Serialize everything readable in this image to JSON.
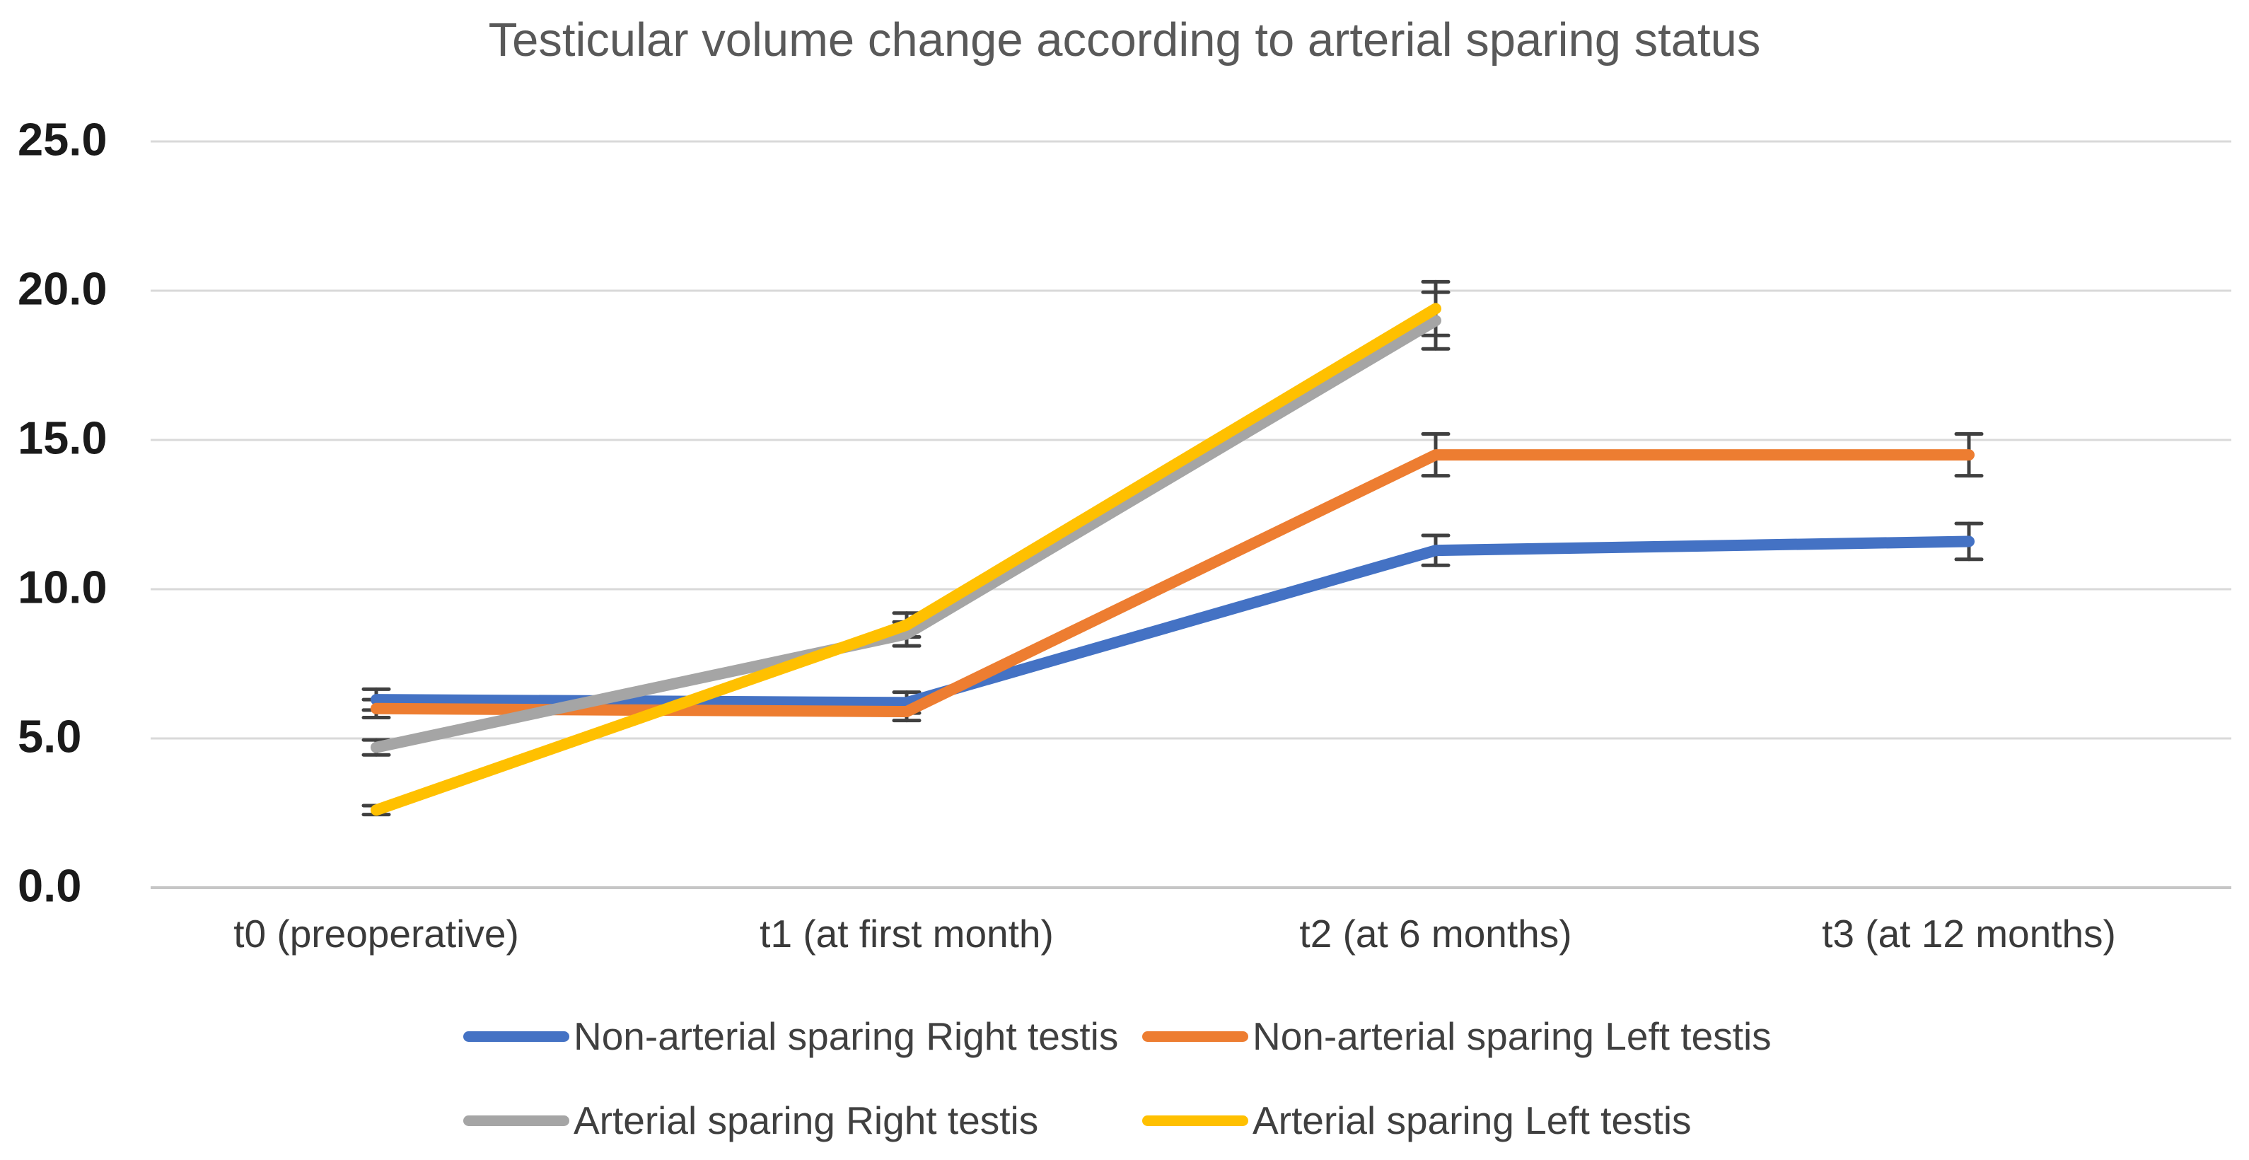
{
  "title": "Testicular volume change according to arterial sparing status",
  "chart_data": {
    "type": "line",
    "categories": [
      "t0 (preoperative)",
      "t1 (at first month)",
      "t2 (at 6 months)",
      "t3 (at 12 months)"
    ],
    "y_axis": {
      "min": 0,
      "max": 25,
      "tick_step": 5,
      "ticks": [
        {
          "value": 0,
          "label": "0.0"
        },
        {
          "value": 5,
          "label": "5.0"
        },
        {
          "value": 10,
          "label": "10.0"
        },
        {
          "value": 15,
          "label": "15.0"
        },
        {
          "value": 20,
          "label": "20.0"
        },
        {
          "value": 25,
          "label": "25.0"
        }
      ]
    },
    "grid": true,
    "legend_position": "bottom",
    "series": [
      {
        "name": "Non-arterial sparing Right testis",
        "color": "#4472C4",
        "values": [
          6.3,
          6.2,
          11.3,
          11.6
        ],
        "error_bars": [
          0.35,
          0.35,
          0.5,
          0.6
        ]
      },
      {
        "name": "Non-arterial sparing Left testis",
        "color": "#ED7D31",
        "values": [
          6.0,
          5.9,
          14.5,
          14.5
        ],
        "error_bars": [
          0.3,
          0.3,
          0.7,
          0.7
        ]
      },
      {
        "name": "Arterial sparing Right testis",
        "color": "#A5A5A5",
        "values": [
          4.7,
          8.5,
          19.0,
          null
        ],
        "error_bars": [
          0.25,
          0.4,
          0.95,
          null
        ]
      },
      {
        "name": "Arterial sparing Left testis",
        "color": "#FFC000",
        "values": [
          2.6,
          8.8,
          19.4,
          null
        ],
        "error_bars": [
          0.15,
          0.4,
          0.9,
          null
        ]
      }
    ],
    "style_colors": {
      "gridline": "#D9D9D9",
      "zero_line": "#C6C6C6",
      "error_bar": "#404040",
      "title": "#595959"
    }
  }
}
